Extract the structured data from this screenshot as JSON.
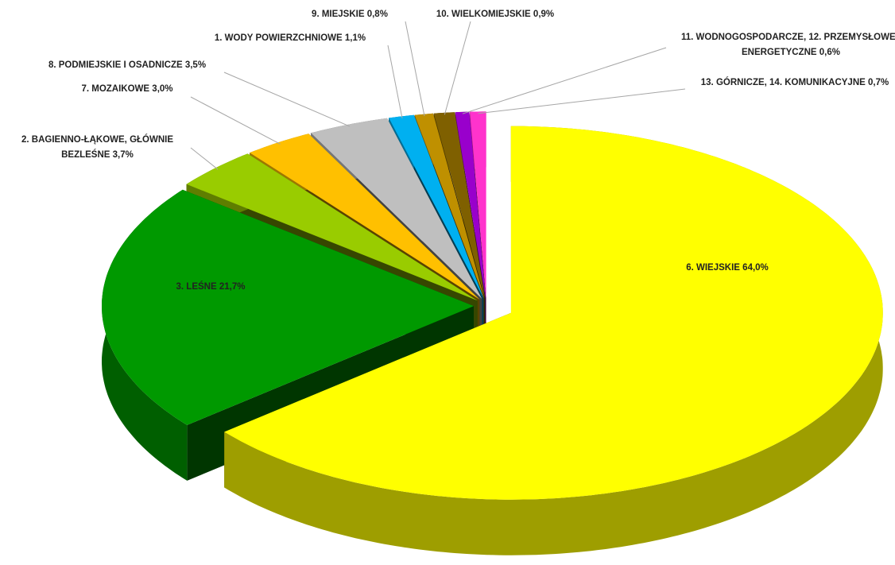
{
  "chart_data": {
    "type": "pie",
    "categories": [
      "6. WIEJSKIE",
      "3. LEŚNE",
      "2. BAGIENNO-ŁĄKOWE, GŁÓWNIE BEZLEŚNE",
      "7. MOZAIKOWE",
      "8. PODMIEJSKIE I OSADNICZE",
      "1. WODY POWIERZCHNIOWE",
      "9. MIEJSKIE",
      "10. WIELKOMIEJSKIE",
      "11. WODNOGOSPODARCZE, 12. PRZEMYSŁOWE I ENERGETYCZNE",
      "13. GÓRNICZE, 14. KOMUNIKACYJNE"
    ],
    "values": [
      64.0,
      21.7,
      3.7,
      3.0,
      3.5,
      1.1,
      0.8,
      0.9,
      0.6,
      0.7
    ],
    "value_labels": [
      "64,0%",
      "21,7%",
      "3,7%",
      "3,0%",
      "3,5%",
      "1,1%",
      "0,8%",
      "0,9%",
      "0,6%",
      "0,7%"
    ],
    "colors": [
      "#ffff00",
      "#009900",
      "#99cc00",
      "#ffc000",
      "#bfbfbf",
      "#00b0f0",
      "#bf9000",
      "#7f6000",
      "#9900cc",
      "#ff33cc"
    ]
  }
}
